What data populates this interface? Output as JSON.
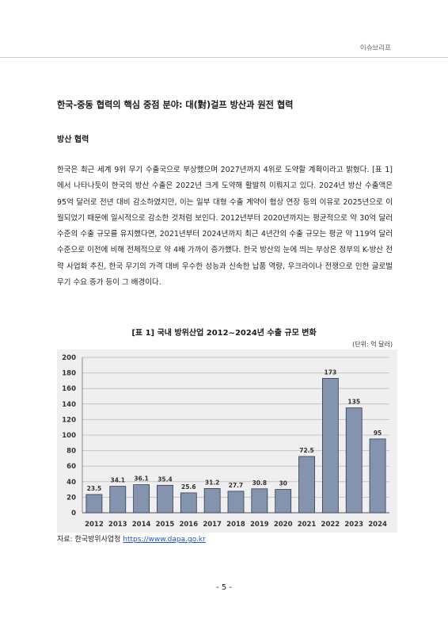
{
  "header": {
    "label": "이슈브리프"
  },
  "section": {
    "title": "한국-중동 협력의 핵심 중점 분야: 대(對)걸프 방산과 원전 협력",
    "subtitle": "방산 협력",
    "paragraph": "한국은 최근 세계 9위 무기 수출국으로 부상했으며 2027년까지 4위로 도약할 계획이라고 밝혔다. [표 1]에서 나타나듯이 한국의 방산 수출은 2022년 크게 도약해 활발히 이뤄지고 있다. 2024년 방산 수출액은 95억 달러로 전년 대비 감소하였지만, 이는 일부 대형 수출 계약이 협상 연장 등의 이유로 2025년으로 이월되었기 때문에 일시적으로 감소한 것처럼 보인다. 2012년부터 2020년까지는 평균적으로 약 30억 달러 수준의 수출 규모를 유지했다면, 2021년부터 2024년까지 최근 4년간의 수출 규모는 평균 약 119억 달러 수준으로 이전에 비해 전체적으로 약 4배 가까이 증가했다. 한국 방산의 눈에 띄는 부상은 정부의 K-방산 전략 사업화 추진, 한국 무기의 가격 대비 우수한 성능과 신속한 납품 역량, 우크라이나 전쟁으로 인한 글로벌 무기 수요 증가 등이 그 배경이다."
  },
  "figure": {
    "title": "[표 1] 국내 방위산업 2012~2024년 수출 규모 변화",
    "unit": "(단위: 억 달러)",
    "source_prefix": "자료: 한국방위사업청 ",
    "source_link": "https://www.dapa.go.kr"
  },
  "chart_data": {
    "type": "bar",
    "title": "[표 1] 국내 방위산업 2012~2024년 수출 규모 변화",
    "xlabel": "",
    "ylabel": "",
    "categories": [
      "2012",
      "2013",
      "2014",
      "2015",
      "2016",
      "2017",
      "2018",
      "2019",
      "2020",
      "2021",
      "2022",
      "2023",
      "2024"
    ],
    "values": [
      23.5,
      34.1,
      36.1,
      35.4,
      25.6,
      31.2,
      27.7,
      30.8,
      30,
      72.5,
      173,
      135,
      95
    ],
    "data_labels": [
      "23.5",
      "34.1",
      "36.1",
      "35.4",
      "25.6",
      "31.2",
      "27.7",
      "30.8",
      "30",
      "72.5",
      "173",
      "135",
      "95"
    ],
    "ylim": [
      0,
      200
    ],
    "yticks": [
      "0",
      "20",
      "40",
      "60",
      "80",
      "100",
      "120",
      "140",
      "160",
      "180",
      "200"
    ],
    "grid": true,
    "legend": "none",
    "bar_color": "#8594ae",
    "bar_stroke": "#2e3a4f"
  },
  "footer": {
    "page": "- 5 -"
  }
}
